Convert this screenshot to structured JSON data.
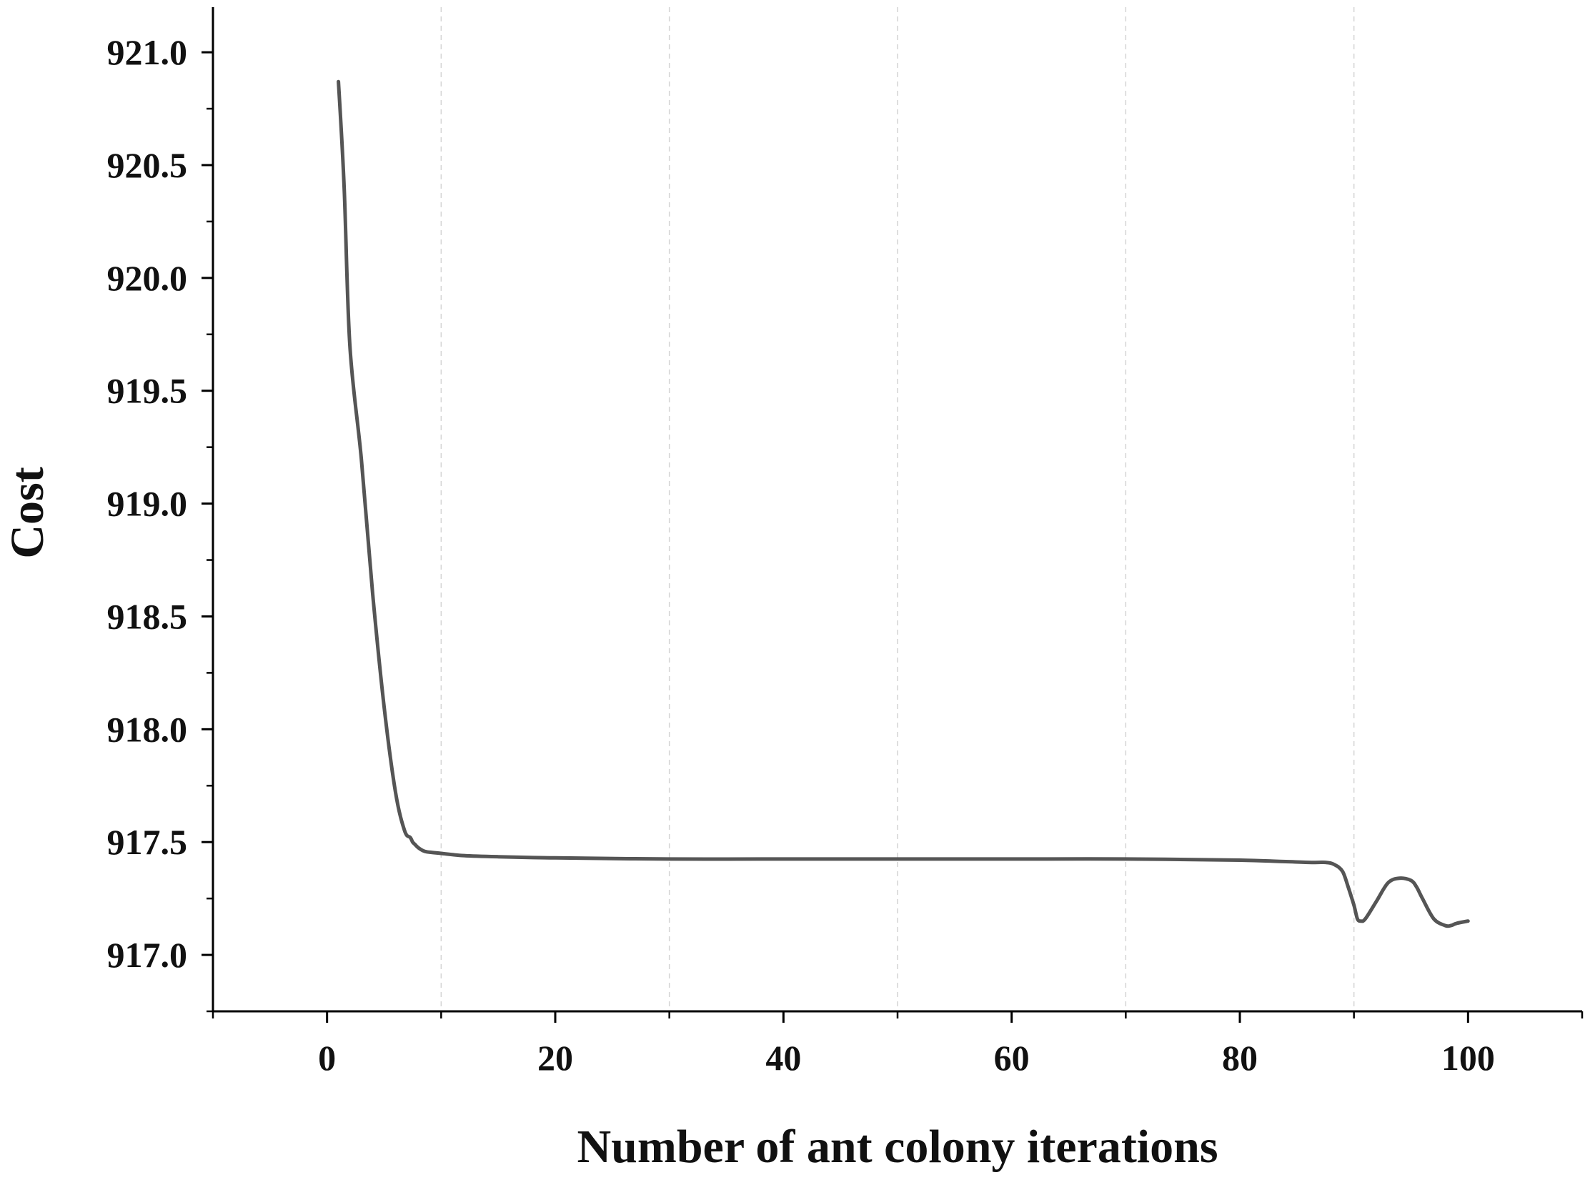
{
  "chart_data": {
    "type": "line",
    "title": "",
    "xlabel": "Number of ant colony iterations",
    "ylabel": "Cost",
    "xlim": [
      -10,
      110
    ],
    "ylim": [
      916.75,
      921.2
    ],
    "x_ticks": [
      0,
      20,
      40,
      60,
      80,
      100
    ],
    "x_tick_labels": [
      "0",
      "20",
      "40",
      "60",
      "80",
      "100"
    ],
    "y_ticks": [
      917.0,
      917.5,
      918.0,
      918.5,
      919.0,
      919.5,
      920.0,
      920.5,
      921.0
    ],
    "y_tick_labels": [
      "917.0",
      "917.5",
      "918.0",
      "918.5",
      "919.0",
      "919.5",
      "920.0",
      "920.5",
      "921.0"
    ],
    "grid": {
      "x": true,
      "y": false,
      "x_lines": [
        10,
        30,
        50,
        70,
        90
      ]
    },
    "legend": "none",
    "series": [
      {
        "color": "#555555",
        "x": [
          1,
          1.5,
          2,
          3,
          4,
          5,
          6,
          6.8,
          7.3,
          7.5,
          7.7,
          8,
          8.5,
          9,
          10,
          12,
          15,
          20,
          30,
          40,
          50,
          60,
          70,
          80,
          86,
          87.5,
          88.3,
          89,
          89.5,
          90,
          90.3,
          90.6,
          91,
          92,
          93,
          94,
          95,
          95.5,
          96,
          97,
          98,
          98.5,
          99,
          100
        ],
        "y": [
          920.87,
          920.4,
          919.7,
          919.2,
          918.6,
          918.1,
          917.72,
          917.55,
          917.52,
          917.5,
          917.49,
          917.475,
          917.46,
          917.455,
          917.45,
          917.44,
          917.435,
          917.43,
          917.425,
          917.425,
          917.425,
          917.425,
          917.425,
          917.42,
          917.41,
          917.41,
          917.4,
          917.37,
          917.3,
          917.22,
          917.16,
          917.15,
          917.16,
          917.24,
          917.32,
          917.34,
          917.33,
          917.3,
          917.25,
          917.16,
          917.13,
          917.13,
          917.14,
          917.15
        ]
      }
    ]
  }
}
